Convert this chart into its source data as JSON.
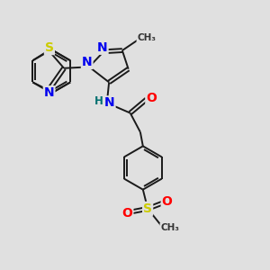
{
  "bg_color": "#e0e0e0",
  "bond_color": "#1a1a1a",
  "bond_width": 1.4,
  "atom_colors": {
    "N": "#0000ee",
    "S": "#cccc00",
    "O": "#ff0000",
    "H": "#007070"
  },
  "fs": 8.5
}
